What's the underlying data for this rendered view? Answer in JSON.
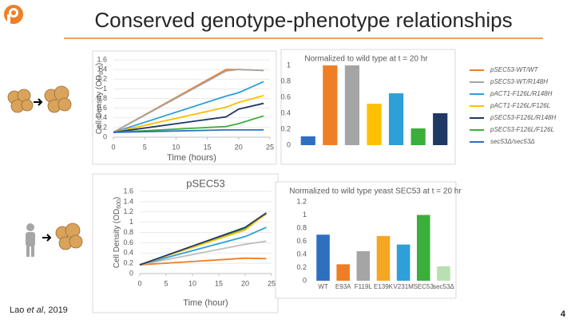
{
  "slide": {
    "title": "Conserved genotype-phenotype relationships",
    "citation": [
      "Lao ",
      "et al",
      ", 2019"
    ],
    "page": "4"
  },
  "chart_data": [
    {
      "type": "line",
      "y_label": [
        "Cell Density (OD",
        "600",
        ")"
      ],
      "x_label": "Time (hours)",
      "x": [
        0,
        18,
        20,
        24
      ],
      "xlim": [
        0,
        25
      ],
      "xticks": [
        0,
        5,
        10,
        15,
        20,
        25
      ],
      "ylim": [
        0,
        1.6
      ],
      "yticks": [
        0,
        0.2,
        0.4,
        0.6,
        0.8,
        1,
        1.2,
        1.4,
        1.6
      ],
      "grid": true,
      "series": [
        {
          "name": "pSEC53-WT/WT",
          "color": "#f07e26",
          "values": [
            0.1,
            1.4,
            1.4,
            1.38
          ]
        },
        {
          "name": "pSEC53-WT/R148H",
          "color": "#a5a5a5",
          "values": [
            0.1,
            1.37,
            1.4,
            1.38
          ]
        },
        {
          "name": "pACT1-F126L/R148H",
          "color": "#2e9fd8",
          "values": [
            0.1,
            0.85,
            0.92,
            1.15
          ]
        },
        {
          "name": "pACT1-F126L/F126L",
          "color": "#ffc000",
          "values": [
            0.1,
            0.62,
            0.72,
            0.86
          ]
        },
        {
          "name": "pSEC53-F126L/R148H",
          "color": "#1f3864",
          "values": [
            0.1,
            0.42,
            0.58,
            0.7
          ]
        },
        {
          "name": "pSEC53-F126L/F126L",
          "color": "#3cae3c",
          "values": [
            0.1,
            0.22,
            0.28,
            0.44
          ]
        },
        {
          "name": "sec53Δ/sec53Δ",
          "color": "#2f6fc0",
          "values": [
            0.1,
            0.15,
            0.15,
            0.15
          ]
        }
      ]
    },
    {
      "type": "bar",
      "title": "Normalized to wild type at t = 20 hr",
      "categories": [
        null,
        null,
        null,
        null,
        null,
        null,
        null
      ],
      "values": [
        0.11,
        1,
        1,
        0.52,
        0.65,
        0.21,
        0.4
      ],
      "colors": [
        "#2f6fc0",
        "#f07e26",
        "#a5a5a5",
        "#ffc000",
        "#2e9fd8",
        "#3cae3c",
        "#1f3864"
      ],
      "ylim": [
        0,
        1
      ],
      "yticks": [
        0,
        0.2,
        0.4,
        0.6,
        0.8,
        1
      ]
    },
    {
      "type": "line",
      "title": "pSEC53",
      "y_label": [
        "Cell Density (OD",
        "600",
        ")"
      ],
      "x_label": "Time (hour)",
      "x": [
        0,
        20,
        24
      ],
      "xlim": [
        0,
        25
      ],
      "xticks": [
        0,
        5,
        10,
        15,
        20,
        25
      ],
      "ylim": [
        0,
        1.6
      ],
      "yticks": [
        0,
        0.2,
        0.4,
        0.6,
        0.8,
        1,
        1.2,
        1.4,
        1.6
      ],
      "grid": true,
      "series": [
        {
          "color": "#f07e26",
          "values": [
            0.17,
            0.3,
            0.29
          ]
        },
        {
          "color": "#bfbfbf",
          "values": [
            0.17,
            0.57,
            0.63
          ]
        },
        {
          "color": "#2e9fd8",
          "values": [
            0.17,
            0.72,
            0.9
          ]
        },
        {
          "color": "#3cae3c",
          "values": [
            0.17,
            0.87,
            1.16
          ]
        },
        {
          "color": "#ffc000",
          "values": [
            0.17,
            0.85,
            1.17
          ]
        },
        {
          "color": "#1f3864",
          "values": [
            0.17,
            0.9,
            1.18
          ]
        }
      ]
    },
    {
      "type": "bar",
      "title": "Normalized to wild type yeast SEC53 at t = 20 hr",
      "categories": [
        "WT",
        "E93A",
        "F119L",
        "E139K",
        "V231M",
        "SEC53",
        "sec53Δ"
      ],
      "values": [
        0.7,
        0.25,
        0.45,
        0.68,
        0.55,
        1,
        0.22
      ],
      "colors": [
        "#2f6fc0",
        "#f07e26",
        "#a5a5a5",
        "#f5a623",
        "#2e9fd8",
        "#3cae3c",
        "#b9e0b0"
      ],
      "ylim": [
        0,
        1.2
      ],
      "yticks": [
        0,
        0.2,
        0.4,
        0.6,
        0.8,
        1,
        1.2
      ]
    }
  ]
}
